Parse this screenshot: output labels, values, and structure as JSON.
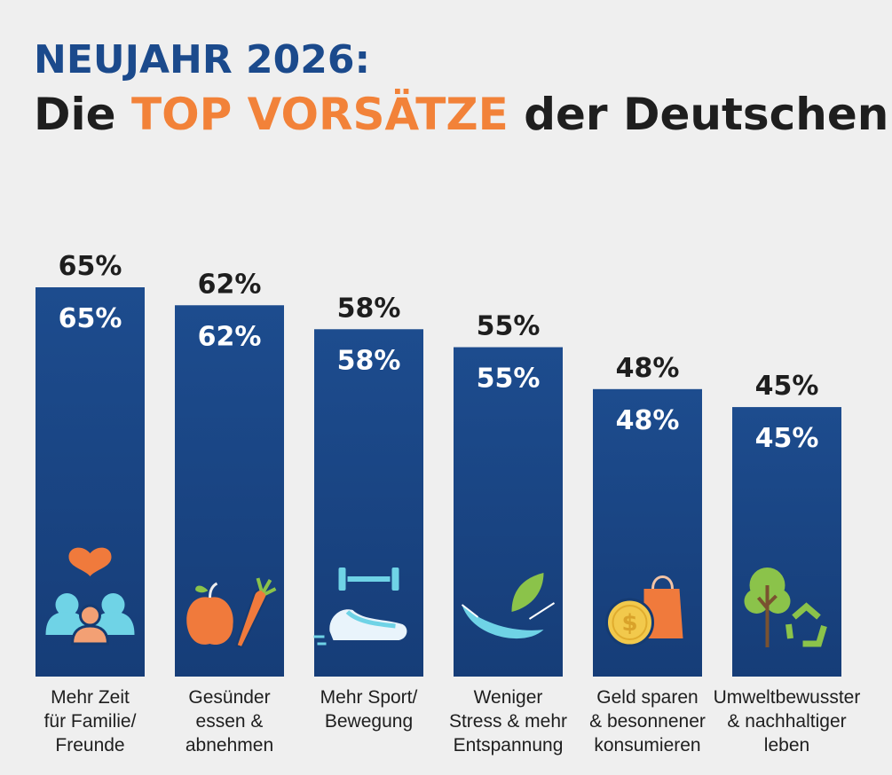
{
  "header": {
    "line1": "NEUJAHR 2026:",
    "line2_pre": "Die ",
    "line2_highlight": "TOP VORSÄTZE",
    "line2_post": " der Deutschen"
  },
  "colors": {
    "title_blue": "#1b4a8c",
    "highlight_orange": "#f28239",
    "bar": "#1c4a8a",
    "background": "#efefef"
  },
  "chart_data": {
    "type": "bar",
    "title": "NEUJAHR 2026: Die TOP VORSÄTZE der Deutschen",
    "xlabel": "",
    "ylabel": "",
    "ylim": [
      0,
      100
    ],
    "grid": false,
    "categories": [
      [
        "Mehr Zeit",
        "für Familie/",
        "Freunde"
      ],
      [
        "Gesünder",
        "essen &",
        "abnehmen"
      ],
      [
        "Mehr Sport/",
        "Bewegung"
      ],
      [
        "Weniger",
        "Stress & mehr",
        "Entspannung"
      ],
      [
        "Geld sparen",
        "& besonnener",
        "konsumieren"
      ],
      [
        "Umweltbewusster",
        "& nachhaltiger",
        "leben"
      ]
    ],
    "values": [
      65,
      62,
      58,
      55,
      48,
      45
    ],
    "value_labels": [
      "65%",
      "62%",
      "58%",
      "55%",
      "48%",
      "45%"
    ],
    "icons": [
      "family-heart-icon",
      "apple-carrot-icon",
      "dumbbell-sneaker-icon",
      "hammock-leaf-icon",
      "coin-shopping-bag-icon",
      "tree-recycle-icon"
    ]
  }
}
